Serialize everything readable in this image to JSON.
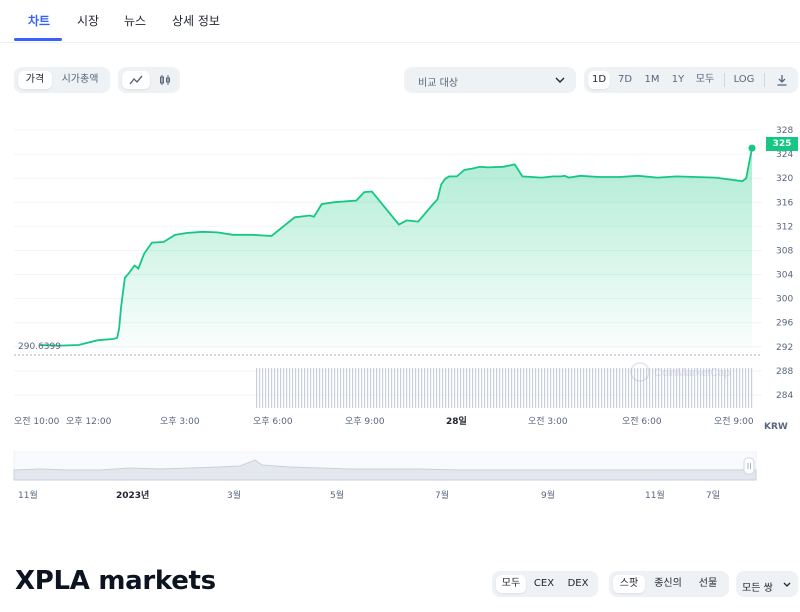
{
  "tabs": [
    {
      "label": "차트",
      "active": true
    },
    {
      "label": "시장",
      "active": false
    },
    {
      "label": "뉴스",
      "active": false
    },
    {
      "label": "상세 정보",
      "active": false
    }
  ],
  "toolbar": {
    "type_toggle": [
      "가격",
      "시가총액"
    ],
    "type_selected": "가격",
    "compare_placeholder": "비교 대상",
    "ranges": [
      "1D",
      "7D",
      "1M",
      "1Y",
      "모두"
    ],
    "range_selected": "1D",
    "log_label": "LOG"
  },
  "chart_data": {
    "type": "area",
    "currency_label": "KRW",
    "current_price_label": "325",
    "open_price_label": "290.6399",
    "yticks": [
      328,
      324,
      320,
      316,
      312,
      308,
      304,
      300,
      296,
      292,
      288,
      284
    ],
    "ylim": [
      282,
      330
    ],
    "xtick_labels": [
      "오전 10:00",
      "오후 12:00",
      "오후 3:00",
      "오후 6:00",
      "오후 9:00",
      "28일",
      "오전 3:00",
      "오전 6:00",
      "오전 9:00"
    ],
    "x": [
      0.0,
      0.5,
      1.0,
      1.5,
      1.9,
      2.0,
      2.05,
      2.1,
      2.2,
      2.3,
      2.45,
      2.55,
      2.7,
      2.9,
      3.2,
      3.5,
      3.8,
      4.2,
      4.6,
      5.0,
      5.5,
      6.0,
      6.6,
      7.0,
      7.1,
      7.3,
      7.6,
      8.2,
      8.4,
      8.6,
      9.3,
      9.5,
      9.8,
      10.2,
      10.3,
      10.4,
      10.5,
      10.6,
      10.8,
      11.0,
      11.2,
      11.4,
      11.6,
      12.0,
      12.3,
      12.5,
      13.0,
      13.3,
      13.5,
      13.6,
      13.7,
      14.0,
      14.5,
      15.0,
      15.5,
      16.0,
      16.5,
      17.5,
      18.2,
      18.3,
      18.45
    ],
    "y": [
      292.3,
      292.2,
      292.3,
      293.1,
      293.3,
      293.5,
      295,
      298.5,
      303.5,
      304.2,
      305.5,
      305.0,
      307.5,
      309.3,
      309.4,
      310.6,
      310.9,
      311.1,
      311.0,
      310.6,
      310.6,
      310.4,
      313.5,
      313.8,
      313.6,
      315.7,
      316.0,
      316.3,
      317.7,
      317.8,
      312.3,
      313.0,
      312.8,
      315.8,
      316.5,
      319.0,
      319.9,
      320.3,
      320.3,
      321.4,
      321.6,
      321.9,
      321.8,
      321.9,
      322.3,
      320.3,
      320.1,
      320.3,
      320.3,
      320.4,
      320.1,
      320.4,
      320.2,
      320.2,
      320.4,
      320.1,
      320.3,
      320.1,
      319.5,
      320.0,
      325.0
    ],
    "volume_start": 0.3,
    "watermark": "CoinMarketCap"
  },
  "navigator": {
    "labels": [
      "11월",
      "2023년",
      "3월",
      "5월",
      "7월",
      "9월",
      "11월",
      "7일"
    ]
  },
  "markets": {
    "title": "XPLA markets",
    "filter1": [
      "모두",
      "CEX",
      "DEX"
    ],
    "filter1_selected": "모두",
    "filter2": [
      "스팟",
      "종신의",
      "선물"
    ],
    "filter2_selected": "스팟",
    "pair_select": "모든 쌍"
  },
  "colors": {
    "accent": "#3861fb",
    "line": "#16c784",
    "volume": "#c9cfdc"
  }
}
